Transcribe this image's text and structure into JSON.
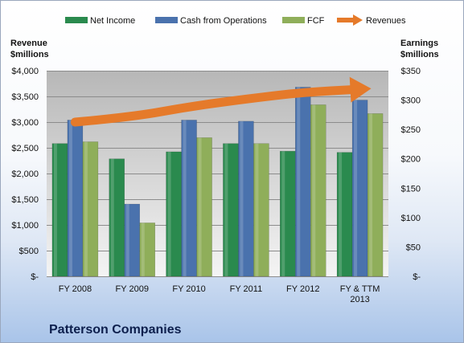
{
  "chart_data": {
    "type": "bar",
    "title": "Patterson Companies",
    "categories": [
      [
        "FY 2008"
      ],
      [
        "FY 2009"
      ],
      [
        "FY 2010"
      ],
      [
        "FY 2011"
      ],
      [
        "FY 2012"
      ],
      [
        "FY & TTM",
        "2013"
      ]
    ],
    "series": [
      {
        "name": "Net Income",
        "axis": "right",
        "color": "#2a8a4e",
        "values": [
          226,
          200,
          212,
          226,
          213,
          211
        ]
      },
      {
        "name": "Cash from Operations",
        "axis": "right",
        "color": "#4a72ad",
        "values": [
          266,
          123,
          266,
          264,
          322,
          300
        ]
      },
      {
        "name": "FCF",
        "axis": "right",
        "color": "#8fae5a",
        "values": [
          229,
          91,
          236,
          226,
          292,
          277
        ]
      },
      {
        "name": "Revenues",
        "axis": "left",
        "type": "arrow",
        "color": "#e57a2a",
        "values": [
          3000,
          3100,
          3300,
          3450,
          3580,
          3640
        ]
      }
    ],
    "left_axis": {
      "label": [
        "Revenue",
        "$millions"
      ],
      "ylim": [
        0,
        4000
      ],
      "ticks": [
        0,
        500,
        1000,
        1500,
        2000,
        2500,
        3000,
        3500,
        4000
      ],
      "tick_labels": [
        "$-",
        "$500",
        "$1,000",
        "$1,500",
        "$2,000",
        "$2,500",
        "$3,000",
        "$3,500",
        "$4,000"
      ]
    },
    "right_axis": {
      "label": [
        "Earnings",
        "$millions"
      ],
      "ylim": [
        0,
        350
      ],
      "ticks": [
        0,
        50,
        100,
        150,
        200,
        250,
        300,
        350
      ],
      "tick_labels": [
        "$-",
        "$50",
        "$100",
        "$150",
        "$200",
        "$250",
        "$300",
        "$350"
      ]
    },
    "grid": true,
    "legend_position": "top"
  }
}
